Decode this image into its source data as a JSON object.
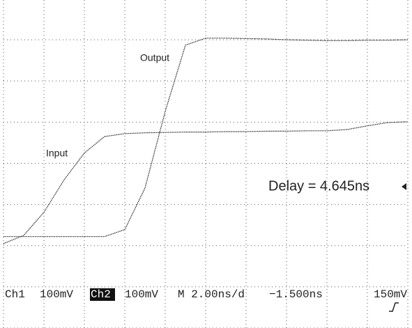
{
  "chart_data": {
    "type": "line",
    "x": [
      0,
      0.5,
      1,
      1.5,
      2,
      2.5,
      3,
      3.5,
      4,
      4.5,
      5,
      5.5,
      6,
      6.5,
      7,
      7.5,
      8,
      8.5,
      9,
      9.5,
      10
    ],
    "series": [
      {
        "name": "Input",
        "color": "#222222",
        "values": [
          2.05,
          2.25,
          2.81,
          3.6,
          4.25,
          4.65,
          4.72,
          4.74,
          4.75,
          4.76,
          4.76,
          4.77,
          4.77,
          4.78,
          4.78,
          4.79,
          4.79,
          4.82,
          4.91,
          4.99,
          5.01
        ]
      },
      {
        "name": "Output",
        "color": "#222222",
        "values": [
          2.22,
          2.22,
          2.22,
          2.22,
          2.22,
          2.22,
          2.39,
          3.4,
          5.26,
          6.87,
          7.04,
          7.04,
          7.03,
          7.02,
          7.0,
          6.99,
          6.98,
          6.98,
          6.99,
          6.99,
          7.0
        ]
      }
    ],
    "xlim": [
      0,
      10
    ],
    "ylim": [
      0,
      8
    ],
    "xticks": [
      0,
      1,
      2,
      3,
      4,
      5,
      6,
      7,
      8,
      9,
      10
    ],
    "yticks": [
      0,
      1,
      2,
      3,
      4,
      5,
      6,
      7,
      8
    ],
    "grid": true,
    "annotation": "Delay = 4.645ns",
    "status_bar": [
      "Ch1",
      "100mV",
      "Ch2",
      "100mV",
      "M 2.00ns/d",
      "−1.500ns",
      "150mV"
    ]
  }
}
